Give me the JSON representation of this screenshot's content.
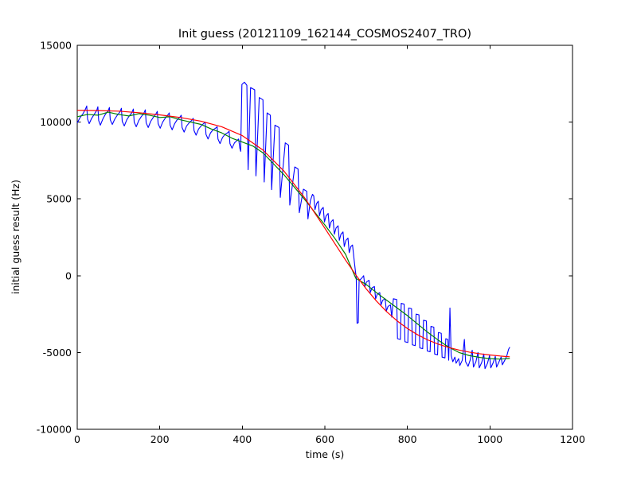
{
  "figure": {
    "title": "Init guess (20121109_162144_COSMOS2407_TRO)",
    "xlabel": "time (s)",
    "ylabel": "initial guess result (Hz)",
    "background_color": "#ffffff",
    "axes_color": "#000000"
  },
  "chart_data": {
    "type": "line",
    "title": "Init guess (20121109_162144_COSMOS2407_TRO)",
    "xlabel": "time (s)",
    "ylabel": "initial guess result (Hz)",
    "xlim": [
      0,
      1200
    ],
    "ylim": [
      -10000,
      15000
    ],
    "x_ticks": [
      0,
      200,
      400,
      600,
      800,
      1000,
      1200
    ],
    "y_ticks": [
      -10000,
      -5000,
      0,
      5000,
      10000,
      15000
    ],
    "x_tick_labels": [
      "0",
      "200",
      "400",
      "600",
      "800",
      "1000",
      "1200"
    ],
    "y_tick_labels": [
      "-10000",
      "-5000",
      "0",
      "5000",
      "10000",
      "15000"
    ],
    "grid": false,
    "legend": "none",
    "tick_direction": "in",
    "series": [
      {
        "name": "blue-noisy-data",
        "color": "#0000ff",
        "width": 1.1,
        "points": [
          [
            0,
            9950
          ],
          [
            7,
            10300
          ],
          [
            14,
            10550
          ],
          [
            20,
            10850
          ],
          [
            23,
            11050
          ],
          [
            25,
            10200
          ],
          [
            29,
            9900
          ],
          [
            35,
            10250
          ],
          [
            41,
            10500
          ],
          [
            47,
            10750
          ],
          [
            50,
            11000
          ],
          [
            52,
            10100
          ],
          [
            56,
            9800
          ],
          [
            62,
            10200
          ],
          [
            68,
            10500
          ],
          [
            74,
            10700
          ],
          [
            78,
            10950
          ],
          [
            80,
            10150
          ],
          [
            85,
            9850
          ],
          [
            91,
            10200
          ],
          [
            97,
            10450
          ],
          [
            103,
            10650
          ],
          [
            107,
            10900
          ],
          [
            109,
            10050
          ],
          [
            114,
            9750
          ],
          [
            120,
            10150
          ],
          [
            126,
            10400
          ],
          [
            132,
            10600
          ],
          [
            136,
            10850
          ],
          [
            138,
            10000
          ],
          [
            143,
            9700
          ],
          [
            149,
            10100
          ],
          [
            155,
            10350
          ],
          [
            161,
            10550
          ],
          [
            165,
            10800
          ],
          [
            167,
            9950
          ],
          [
            172,
            9650
          ],
          [
            178,
            10050
          ],
          [
            184,
            10300
          ],
          [
            190,
            10500
          ],
          [
            194,
            10700
          ],
          [
            196,
            9900
          ],
          [
            201,
            9600
          ],
          [
            207,
            10000
          ],
          [
            213,
            10250
          ],
          [
            219,
            10450
          ],
          [
            223,
            10600
          ],
          [
            225,
            9800
          ],
          [
            230,
            9500
          ],
          [
            236,
            9900
          ],
          [
            242,
            10150
          ],
          [
            248,
            10300
          ],
          [
            252,
            10450
          ],
          [
            254,
            9650
          ],
          [
            259,
            9350
          ],
          [
            265,
            9750
          ],
          [
            271,
            9950
          ],
          [
            277,
            10100
          ],
          [
            281,
            10250
          ],
          [
            283,
            9450
          ],
          [
            288,
            9150
          ],
          [
            294,
            9550
          ],
          [
            300,
            9750
          ],
          [
            306,
            9900
          ],
          [
            310,
            10000
          ],
          [
            312,
            9200
          ],
          [
            317,
            8900
          ],
          [
            323,
            9300
          ],
          [
            329,
            9500
          ],
          [
            335,
            9600
          ],
          [
            339,
            9700
          ],
          [
            341,
            8900
          ],
          [
            346,
            8600
          ],
          [
            352,
            9000
          ],
          [
            358,
            9200
          ],
          [
            364,
            9300
          ],
          [
            368,
            9400
          ],
          [
            370,
            8600
          ],
          [
            375,
            8300
          ],
          [
            381,
            8650
          ],
          [
            387,
            8800
          ],
          [
            391,
            8900
          ],
          [
            394,
            8300
          ],
          [
            396,
            8100
          ],
          [
            399,
            12450
          ],
          [
            405,
            12600
          ],
          [
            411,
            12400
          ],
          [
            414,
            6900
          ],
          [
            420,
            12250
          ],
          [
            430,
            12100
          ],
          [
            433,
            6500
          ],
          [
            441,
            11600
          ],
          [
            450,
            11450
          ],
          [
            453,
            6100
          ],
          [
            460,
            10600
          ],
          [
            468,
            10450
          ],
          [
            471,
            5600
          ],
          [
            479,
            9800
          ],
          [
            489,
            9650
          ],
          [
            492,
            5100
          ],
          [
            504,
            8650
          ],
          [
            512,
            8500
          ],
          [
            515,
            4600
          ],
          [
            527,
            7080
          ],
          [
            535,
            6950
          ],
          [
            538,
            4100
          ],
          [
            548,
            5630
          ],
          [
            556,
            5500
          ],
          [
            559,
            3700
          ],
          [
            565,
            4900
          ],
          [
            570,
            5300
          ],
          [
            573,
            5200
          ],
          [
            576,
            4300
          ],
          [
            580,
            4700
          ],
          [
            584,
            4850
          ],
          [
            587,
            3900
          ],
          [
            591,
            4300
          ],
          [
            596,
            4450
          ],
          [
            599,
            3500
          ],
          [
            603,
            3900
          ],
          [
            608,
            4050
          ],
          [
            611,
            3100
          ],
          [
            615,
            3500
          ],
          [
            620,
            3650
          ],
          [
            623,
            2700
          ],
          [
            627,
            3100
          ],
          [
            632,
            3250
          ],
          [
            635,
            2300
          ],
          [
            639,
            2700
          ],
          [
            644,
            2850
          ],
          [
            647,
            1900
          ],
          [
            651,
            2300
          ],
          [
            656,
            2450
          ],
          [
            659,
            1500
          ],
          [
            663,
            1900
          ],
          [
            667,
            2000
          ],
          [
            671,
            1000
          ],
          [
            674,
            300
          ],
          [
            676,
            -100
          ],
          [
            678,
            -3100
          ],
          [
            681,
            -3050
          ],
          [
            683,
            -300
          ],
          [
            688,
            -200
          ],
          [
            694,
            0
          ],
          [
            697,
            -700
          ],
          [
            701,
            -400
          ],
          [
            707,
            -300
          ],
          [
            710,
            -1100
          ],
          [
            714,
            -800
          ],
          [
            720,
            -700
          ],
          [
            723,
            -1500
          ],
          [
            727,
            -1200
          ],
          [
            733,
            -1100
          ],
          [
            736,
            -1900
          ],
          [
            740,
            -1600
          ],
          [
            746,
            -1500
          ],
          [
            749,
            -2300
          ],
          [
            753,
            -2000
          ],
          [
            759,
            -1900
          ],
          [
            762,
            -2700
          ],
          [
            766,
            -1500
          ],
          [
            774,
            -1550
          ],
          [
            776,
            -4100
          ],
          [
            783,
            -4150
          ],
          [
            785,
            -1800
          ],
          [
            792,
            -1850
          ],
          [
            794,
            -4300
          ],
          [
            801,
            -4350
          ],
          [
            803,
            -2100
          ],
          [
            810,
            -2150
          ],
          [
            812,
            -4500
          ],
          [
            819,
            -4550
          ],
          [
            821,
            -2500
          ],
          [
            828,
            -2550
          ],
          [
            830,
            -4700
          ],
          [
            837,
            -4750
          ],
          [
            839,
            -2900
          ],
          [
            846,
            -2950
          ],
          [
            848,
            -4900
          ],
          [
            855,
            -4950
          ],
          [
            857,
            -3300
          ],
          [
            864,
            -3350
          ],
          [
            866,
            -5100
          ],
          [
            873,
            -5150
          ],
          [
            875,
            -3700
          ],
          [
            882,
            -3750
          ],
          [
            884,
            -5300
          ],
          [
            891,
            -5350
          ],
          [
            893,
            -4100
          ],
          [
            898,
            -4150
          ],
          [
            900,
            -5500
          ],
          [
            903,
            -2100
          ],
          [
            906,
            -5200
          ],
          [
            910,
            -5600
          ],
          [
            915,
            -5300
          ],
          [
            918,
            -5700
          ],
          [
            924,
            -5400
          ],
          [
            927,
            -5850
          ],
          [
            933,
            -5500
          ],
          [
            938,
            -4150
          ],
          [
            941,
            -5600
          ],
          [
            947,
            -5900
          ],
          [
            952,
            -5500
          ],
          [
            957,
            -4850
          ],
          [
            960,
            -5950
          ],
          [
            966,
            -5600
          ],
          [
            971,
            -5000
          ],
          [
            974,
            -6000
          ],
          [
            980,
            -5650
          ],
          [
            985,
            -5100
          ],
          [
            988,
            -6050
          ],
          [
            994,
            -5700
          ],
          [
            999,
            -5200
          ],
          [
            1002,
            -6000
          ],
          [
            1008,
            -5650
          ],
          [
            1013,
            -5250
          ],
          [
            1016,
            -5950
          ],
          [
            1022,
            -5600
          ],
          [
            1027,
            -5300
          ],
          [
            1030,
            -5800
          ],
          [
            1036,
            -5500
          ],
          [
            1041,
            -5200
          ],
          [
            1045,
            -4800
          ],
          [
            1048,
            -4650
          ]
        ]
      },
      {
        "name": "green-smoothed-curve",
        "color": "#008000",
        "width": 1.2,
        "points": [
          [
            0,
            10350
          ],
          [
            25,
            10500
          ],
          [
            50,
            10450
          ],
          [
            75,
            10650
          ],
          [
            100,
            10500
          ],
          [
            125,
            10400
          ],
          [
            150,
            10550
          ],
          [
            175,
            10450
          ],
          [
            200,
            10300
          ],
          [
            225,
            10350
          ],
          [
            250,
            10150
          ],
          [
            275,
            10000
          ],
          [
            300,
            9850
          ],
          [
            325,
            9550
          ],
          [
            350,
            9300
          ],
          [
            375,
            8950
          ],
          [
            400,
            8700
          ],
          [
            425,
            8450
          ],
          [
            450,
            8000
          ],
          [
            475,
            7300
          ],
          [
            500,
            6600
          ],
          [
            525,
            5800
          ],
          [
            550,
            5000
          ],
          [
            575,
            4150
          ],
          [
            600,
            3300
          ],
          [
            625,
            2400
          ],
          [
            650,
            1400
          ],
          [
            675,
            -170
          ],
          [
            700,
            -570
          ],
          [
            725,
            -1100
          ],
          [
            750,
            -1600
          ],
          [
            775,
            -2100
          ],
          [
            800,
            -2600
          ],
          [
            825,
            -3150
          ],
          [
            850,
            -3700
          ],
          [
            875,
            -4200
          ],
          [
            900,
            -4650
          ],
          [
            925,
            -5000
          ],
          [
            950,
            -5200
          ],
          [
            975,
            -5320
          ],
          [
            1000,
            -5400
          ],
          [
            1025,
            -5430
          ],
          [
            1048,
            -5380
          ]
        ]
      },
      {
        "name": "red-fit-curve",
        "color": "#ff0000",
        "width": 1.2,
        "points": [
          [
            0,
            10770
          ],
          [
            50,
            10750
          ],
          [
            100,
            10715
          ],
          [
            150,
            10610
          ],
          [
            200,
            10470
          ],
          [
            250,
            10300
          ],
          [
            300,
            10060
          ],
          [
            350,
            9700
          ],
          [
            400,
            9120
          ],
          [
            450,
            8180
          ],
          [
            500,
            6840
          ],
          [
            550,
            5110
          ],
          [
            600,
            3090
          ],
          [
            650,
            1020
          ],
          [
            675,
            50
          ],
          [
            700,
            -850
          ],
          [
            725,
            -1650
          ],
          [
            750,
            -2350
          ],
          [
            775,
            -2940
          ],
          [
            800,
            -3440
          ],
          [
            825,
            -3850
          ],
          [
            850,
            -4190
          ],
          [
            875,
            -4460
          ],
          [
            900,
            -4670
          ],
          [
            925,
            -4840
          ],
          [
            950,
            -4975
          ],
          [
            975,
            -5080
          ],
          [
            1000,
            -5160
          ],
          [
            1025,
            -5230
          ],
          [
            1048,
            -5280
          ]
        ]
      }
    ]
  }
}
